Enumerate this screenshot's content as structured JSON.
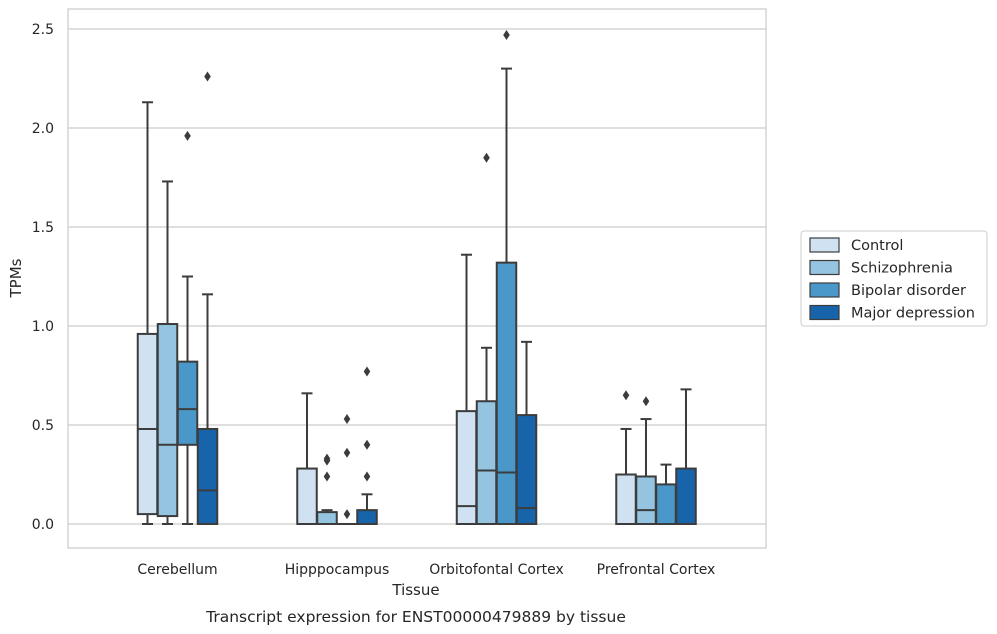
{
  "chart_data": {
    "type": "box",
    "xlabel": "Tissue",
    "ylabel": "TPMs",
    "caption": "Transcript expression for ENST00000479889 by tissue",
    "ylim": [
      -0.12,
      2.6
    ],
    "yticks": [
      0.0,
      0.5,
      1.0,
      1.5,
      2.0,
      2.5
    ],
    "ytick_labels": [
      "0.0",
      "0.5",
      "1.0",
      "1.5",
      "2.0",
      "2.5"
    ],
    "grid": "horizontal",
    "legend_position": "right",
    "categories": [
      "Cerebellum",
      "Hipppocampus",
      "Orbitofontal Cortex",
      "Prefrontal Cortex"
    ],
    "series": [
      {
        "name": "Control",
        "color": "#d0e1f2",
        "boxes": [
          {
            "whisker_low": 0.0,
            "q1": 0.05,
            "median": 0.48,
            "q3": 0.96,
            "whisker_high": 2.13,
            "outliers": []
          },
          {
            "whisker_low": 0.0,
            "q1": 0.0,
            "median": 0.0,
            "q3": 0.28,
            "whisker_high": 0.66,
            "outliers": []
          },
          {
            "whisker_low": 0.0,
            "q1": 0.0,
            "median": 0.09,
            "q3": 0.57,
            "whisker_high": 1.36,
            "outliers": []
          },
          {
            "whisker_low": 0.0,
            "q1": 0.0,
            "median": 0.0,
            "q3": 0.25,
            "whisker_high": 0.48,
            "outliers": [
              0.65
            ]
          }
        ]
      },
      {
        "name": "Schizophrenia",
        "color": "#94c4df",
        "boxes": [
          {
            "whisker_low": 0.0,
            "q1": 0.04,
            "median": 0.4,
            "q3": 1.01,
            "whisker_high": 1.73,
            "outliers": []
          },
          {
            "whisker_low": 0.0,
            "q1": 0.0,
            "median": 0.0,
            "q3": 0.06,
            "whisker_high": 0.07,
            "outliers": [
              0.24,
              0.32,
              0.33
            ]
          },
          {
            "whisker_low": 0.0,
            "q1": 0.0,
            "median": 0.27,
            "q3": 0.62,
            "whisker_high": 0.89,
            "outliers": [
              1.85
            ]
          },
          {
            "whisker_low": 0.0,
            "q1": 0.0,
            "median": 0.07,
            "q3": 0.24,
            "whisker_high": 0.53,
            "outliers": [
              0.62
            ]
          }
        ]
      },
      {
        "name": "Bipolar disorder",
        "color": "#4a98c9",
        "boxes": [
          {
            "whisker_low": 0.0,
            "q1": 0.4,
            "median": 0.58,
            "q3": 0.82,
            "whisker_high": 1.25,
            "outliers": [
              1.96
            ]
          },
          {
            "whisker_low": 0.0,
            "q1": 0.0,
            "median": 0.0,
            "q3": 0.0,
            "whisker_high": 0.0,
            "outliers": [
              0.05,
              0.36,
              0.53
            ]
          },
          {
            "whisker_low": 0.0,
            "q1": 0.0,
            "median": 0.26,
            "q3": 1.32,
            "whisker_high": 2.3,
            "outliers": [
              2.47
            ]
          },
          {
            "whisker_low": 0.0,
            "q1": 0.0,
            "median": 0.0,
            "q3": 0.2,
            "whisker_high": 0.3,
            "outliers": []
          }
        ]
      },
      {
        "name": "Major depression",
        "color": "#1764ab",
        "boxes": [
          {
            "whisker_low": 0.0,
            "q1": 0.0,
            "median": 0.17,
            "q3": 0.48,
            "whisker_high": 1.16,
            "outliers": [
              2.26
            ]
          },
          {
            "whisker_low": 0.0,
            "q1": 0.0,
            "median": 0.0,
            "q3": 0.07,
            "whisker_high": 0.15,
            "outliers": [
              0.24,
              0.4,
              0.77
            ]
          },
          {
            "whisker_low": 0.0,
            "q1": 0.0,
            "median": 0.08,
            "q3": 0.55,
            "whisker_high": 0.92,
            "outliers": []
          },
          {
            "whisker_low": 0.0,
            "q1": 0.0,
            "median": 0.0,
            "q3": 0.28,
            "whisker_high": 0.68,
            "outliers": []
          }
        ]
      }
    ]
  }
}
